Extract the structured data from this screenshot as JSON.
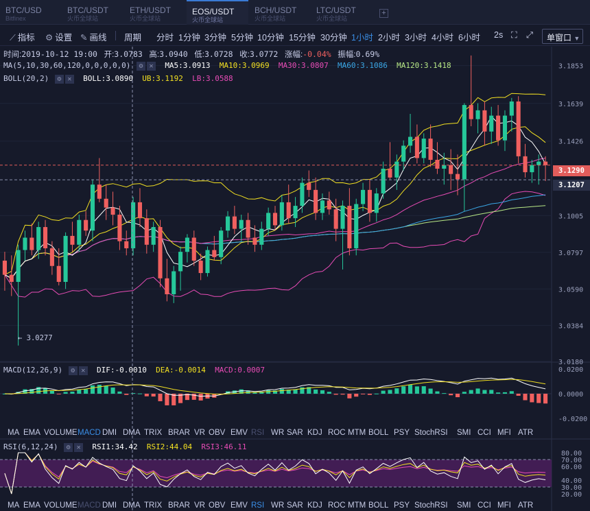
{
  "tabs": [
    {
      "pair": "BTC/USD",
      "exchange": "Bitfinex"
    },
    {
      "pair": "BTC/USDT",
      "exchange": "火币全球站"
    },
    {
      "pair": "ETH/USDT",
      "exchange": "火币全球站"
    },
    {
      "pair": "EOS/USDT",
      "exchange": "火币全球站"
    },
    {
      "pair": "BCH/USDT",
      "exchange": "火币全球站"
    },
    {
      "pair": "LTC/USDT",
      "exchange": "火币全球站"
    }
  ],
  "add_tab": "+",
  "toolbar": {
    "indicator": "指标",
    "settings": "设置",
    "draw": "画线",
    "period": "周期",
    "intervals": [
      "分时",
      "1分钟",
      "3分钟",
      "5分钟",
      "10分钟",
      "15分钟",
      "30分钟",
      "1小时",
      "2小时",
      "3小时",
      "4小时",
      "6小时"
    ],
    "active_interval": "1小时",
    "refresh": "2s",
    "window": "单窗口"
  },
  "ohlc": {
    "time_label": "时间:",
    "time": "2019-10-12 19:00",
    "open_label": "开:",
    "open": "3.0783",
    "high_label": "高:",
    "high": "3.0940",
    "low_label": "低:",
    "low": "3.0728",
    "close_label": "收:",
    "close": "3.0772",
    "change_label": "涨幅:",
    "change": "-0.04%",
    "amp_label": "振幅:",
    "amp": "0.69%"
  },
  "ma": {
    "params": "MA(5,10,30,60,120,0,0,0,0,0)",
    "ma5": "MA5:3.0913",
    "ma10": "MA10:3.0969",
    "ma30": "MA30:3.0807",
    "ma60": "MA60:3.1086",
    "ma120": "MA120:3.1418"
  },
  "boll": {
    "params": "BOLL(20,2)",
    "boll": "BOLL:3.0890",
    "ub": "UB:3.1192",
    "lb": "LB:3.0588"
  },
  "macd_info": {
    "params": "MACD(12,26,9)",
    "dif": "DIF:-0.0010",
    "dea": "DEA:-0.0014",
    "macd": "MACD:0.0007"
  },
  "rsi_info": {
    "params": "RSI(6,12,24)",
    "rsi1": "RSI1:34.42",
    "rsi2": "RSI2:44.04",
    "rsi3": "RSI3:46.11"
  },
  "indicator_tabs": [
    "MA",
    "EMA",
    "VOLUME",
    "MACD",
    "DMI",
    "DMA",
    "TRIX",
    "BRAR",
    "VR",
    "OBV",
    "EMV",
    "RSI",
    "WR",
    "SAR",
    "KDJ",
    "ROC",
    "MTM",
    "BOLL",
    "PSY",
    "StochRSI",
    "SMI",
    "CCI",
    "MFI",
    "ATR"
  ],
  "indicator_tabs_1_active": "MACD",
  "indicator_tabs_1_dim": "RSI",
  "indicator_tabs_2_active": "RSI",
  "indicator_tabs_2_dim": "MACD",
  "price_axis": [
    "3.1853",
    "3.1639",
    "3.1426",
    "3.1005",
    "3.0797",
    "3.0590",
    "3.0384",
    "3.0180"
  ],
  "macd_axis": [
    "0.0200",
    "0.0000",
    "-0.0200"
  ],
  "rsi_axis": [
    "80.00",
    "70.00",
    "60.00",
    "40.00",
    "30.00",
    "20.00"
  ],
  "last_price": "3.1290",
  "crosshair_price": "3.1207",
  "low_marker": "← 3.0277",
  "colors": {
    "up": "#26c89a",
    "down": "#f0605f",
    "ma5": "#ffffff",
    "ma10": "#f2e022",
    "ma30": "#e84cb6",
    "ma60": "#3aa7e6",
    "ma120": "#b8e986",
    "boll": "#ffffff",
    "ub": "#f2e022",
    "lb": "#e84cb6",
    "rsi_band": "#4a1f5c"
  },
  "chart_data": {
    "type": "candlestick",
    "price_range": [
      3.018,
      3.196
    ],
    "candles": [
      [
        3.075,
        3.08,
        3.058,
        3.067
      ],
      [
        3.067,
        3.078,
        3.055,
        3.063
      ],
      [
        3.063,
        3.084,
        3.027,
        3.081
      ],
      [
        3.081,
        3.092,
        3.075,
        3.088
      ],
      [
        3.088,
        3.096,
        3.078,
        3.081
      ],
      [
        3.081,
        3.097,
        3.076,
        3.094
      ],
      [
        3.094,
        3.098,
        3.078,
        3.082
      ],
      [
        3.082,
        3.086,
        3.067,
        3.072
      ],
      [
        3.072,
        3.082,
        3.061,
        3.063
      ],
      [
        3.063,
        3.091,
        3.059,
        3.089
      ],
      [
        3.089,
        3.097,
        3.08,
        3.084
      ],
      [
        3.084,
        3.101,
        3.08,
        3.098
      ],
      [
        3.098,
        3.103,
        3.089,
        3.092
      ],
      [
        3.092,
        3.121,
        3.086,
        3.118
      ],
      [
        3.118,
        3.133,
        3.108,
        3.11
      ],
      [
        3.11,
        3.118,
        3.098,
        3.105
      ],
      [
        3.105,
        3.114,
        3.095,
        3.101
      ],
      [
        3.101,
        3.106,
        3.081,
        3.086
      ],
      [
        3.086,
        3.092,
        3.078,
        3.082
      ],
      [
        3.082,
        3.111,
        3.078,
        3.108
      ],
      [
        3.108,
        3.116,
        3.094,
        3.099
      ],
      [
        3.099,
        3.104,
        3.079,
        3.084
      ],
      [
        3.084,
        3.097,
        3.08,
        3.094
      ],
      [
        3.094,
        3.098,
        3.06,
        3.065
      ],
      [
        3.065,
        3.076,
        3.052,
        3.056
      ],
      [
        3.056,
        3.072,
        3.051,
        3.069
      ],
      [
        3.069,
        3.083,
        3.058,
        3.08
      ],
      [
        3.08,
        3.09,
        3.074,
        3.088
      ],
      [
        3.088,
        3.092,
        3.072,
        3.075
      ],
      [
        3.075,
        3.079,
        3.064,
        3.068
      ],
      [
        3.068,
        3.083,
        3.066,
        3.081
      ],
      [
        3.081,
        3.089,
        3.075,
        3.077
      ],
      [
        3.077,
        3.094,
        3.073,
        3.092
      ],
      [
        3.092,
        3.103,
        3.088,
        3.1
      ],
      [
        3.1,
        3.106,
        3.09,
        3.093
      ],
      [
        3.093,
        3.101,
        3.086,
        3.098
      ],
      [
        3.098,
        3.102,
        3.084,
        3.088
      ],
      [
        3.088,
        3.095,
        3.08,
        3.084
      ],
      [
        3.084,
        3.097,
        3.081,
        3.093
      ],
      [
        3.093,
        3.105,
        3.089,
        3.102
      ],
      [
        3.102,
        3.106,
        3.092,
        3.095
      ],
      [
        3.095,
        3.112,
        3.092,
        3.108
      ],
      [
        3.108,
        3.118,
        3.096,
        3.099
      ],
      [
        3.099,
        3.111,
        3.094,
        3.106
      ],
      [
        3.106,
        3.122,
        3.102,
        3.119
      ],
      [
        3.119,
        3.126,
        3.111,
        3.115
      ],
      [
        3.115,
        3.122,
        3.098,
        3.102
      ],
      [
        3.102,
        3.113,
        3.098,
        3.109
      ],
      [
        3.109,
        3.114,
        3.101,
        3.104
      ],
      [
        3.104,
        3.11,
        3.086,
        3.093
      ],
      [
        3.093,
        3.109,
        3.07,
        3.106
      ],
      [
        3.106,
        3.116,
        3.078,
        3.082
      ],
      [
        3.082,
        3.11,
        3.078,
        3.107
      ],
      [
        3.107,
        3.119,
        3.103,
        3.115
      ],
      [
        3.115,
        3.121,
        3.097,
        3.102
      ],
      [
        3.102,
        3.116,
        3.097,
        3.113
      ],
      [
        3.113,
        3.131,
        3.11,
        3.127
      ],
      [
        3.127,
        3.142,
        3.121,
        3.122
      ],
      [
        3.122,
        3.135,
        3.115,
        3.131
      ],
      [
        3.131,
        3.143,
        3.126,
        3.14
      ],
      [
        3.14,
        3.158,
        3.136,
        3.145
      ],
      [
        3.145,
        3.152,
        3.13,
        3.133
      ],
      [
        3.133,
        3.147,
        3.13,
        3.144
      ],
      [
        3.144,
        3.152,
        3.128,
        3.132
      ],
      [
        3.132,
        3.142,
        3.124,
        3.127
      ],
      [
        3.127,
        3.136,
        3.118,
        3.129
      ],
      [
        3.129,
        3.138,
        3.115,
        3.124
      ],
      [
        3.124,
        3.135,
        3.112,
        3.121
      ],
      [
        3.121,
        3.164,
        3.103,
        3.163
      ],
      [
        3.163,
        3.191,
        3.151,
        3.155
      ],
      [
        3.155,
        3.164,
        3.147,
        3.16
      ],
      [
        3.16,
        3.165,
        3.14,
        3.148
      ],
      [
        3.148,
        3.162,
        3.141,
        3.157
      ],
      [
        3.157,
        3.163,
        3.14,
        3.143
      ],
      [
        3.143,
        3.16,
        3.137,
        3.157
      ],
      [
        3.157,
        3.167,
        3.148,
        3.165
      ],
      [
        3.165,
        3.168,
        3.13,
        3.134
      ],
      [
        3.134,
        3.141,
        3.122,
        3.125
      ],
      [
        3.125,
        3.132,
        3.119,
        3.129
      ],
      [
        3.129,
        3.135,
        3.118,
        3.131
      ],
      [
        3.131,
        3.134,
        3.12,
        3.129
      ]
    ]
  }
}
